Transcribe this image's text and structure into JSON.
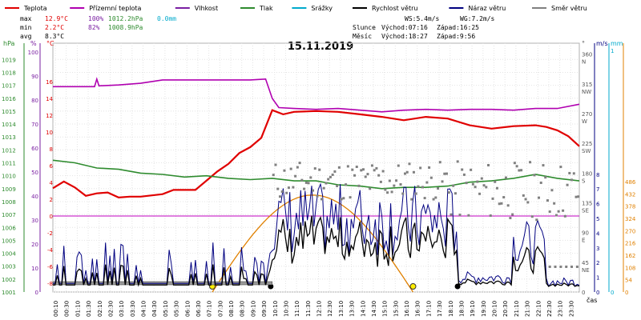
{
  "legend": [
    {
      "label": "Teplota",
      "color": "#e00000"
    },
    {
      "label": "Přízemní teplota",
      "color": "#b000b0"
    },
    {
      "label": "Vlhkost",
      "color": "#7a1fa2"
    },
    {
      "label": "Tlak",
      "color": "#2e8b2e"
    },
    {
      "label": "Srážky",
      "color": "#00aacc"
    },
    {
      "label": "Rychlost větru",
      "color": "#000000"
    },
    {
      "label": "Náraz větru",
      "color": "#000080"
    },
    {
      "label": "Směr větru",
      "color": "#808080"
    }
  ],
  "stats": {
    "max_label": "max",
    "min_label": "min",
    "avg_label": "avg",
    "max_temp": "12.9°C",
    "max_hum": "100%",
    "max_press": "1012.2hPa",
    "max_rain": "0.0mm",
    "min_temp": "2.2°C",
    "min_hum": "82%",
    "min_press": "1008.9hPa",
    "avg_temp": "8.3°C"
  },
  "wind_info": {
    "ws": "WS:5.4m/s",
    "wg": "WG:7.2m/s"
  },
  "sun": {
    "label": "Slunce",
    "rise": "Východ:07:16",
    "set": "Západ:16:25"
  },
  "moon": {
    "label": "Měsíc",
    "rise": "Východ:18:27",
    "set": "Západ:9:56"
  },
  "date": "15.11.2019",
  "axis_units": {
    "hpa": "hPa",
    "pct": "%",
    "degc": "°C",
    "deg": "°",
    "ms": "m/s",
    "mm": "mm",
    "cas": "čas"
  },
  "chart_data": {
    "type": "line",
    "title": "15.11.2019",
    "x_ticks": [
      "00:10",
      "00:30",
      "01:10",
      "01:30",
      "02:10",
      "02:30",
      "03:10",
      "03:30",
      "04:10",
      "04:30",
      "05:10",
      "05:30",
      "06:10",
      "06:30",
      "07:10",
      "07:30",
      "08:10",
      "08:30",
      "09:10",
      "09:30",
      "10:10",
      "10:30",
      "11:10",
      "11:30",
      "12:10",
      "12:30",
      "13:10",
      "13:30",
      "14:10",
      "14:30",
      "15:10",
      "15:30",
      "16:10",
      "16:30",
      "17:10",
      "17:30",
      "18:10",
      "18:30",
      "19:10",
      "19:30",
      "20:10",
      "20:30",
      "21:10",
      "21:30",
      "22:10",
      "22:30",
      "23:10",
      "23:30"
    ],
    "axes": {
      "pressure_hpa": {
        "ticks": [
          1019,
          1018,
          1017,
          1016,
          1015,
          1014,
          1013,
          1012,
          1011,
          1010,
          1009,
          1008,
          1007,
          1006,
          1005,
          1004,
          1003,
          1002,
          1001
        ],
        "range": [
          1001,
          1019.5
        ]
      },
      "humidity_pct": {
        "ticks": [
          100,
          90,
          80,
          70,
          60,
          50,
          40,
          30,
          20,
          10,
          0
        ],
        "range": [
          0,
          105
        ]
      },
      "temperature_c": {
        "ticks": [
          16,
          14,
          12,
          10,
          8,
          6,
          4,
          2,
          0,
          -2,
          -4,
          -6,
          -8
        ],
        "range": [
          -8,
          18
        ]
      },
      "wind_dir_deg": {
        "ticks": [
          {
            "v": "360",
            "d": "N"
          },
          {
            "v": "315",
            "d": "NW"
          },
          {
            "v": "270",
            "d": "W"
          },
          {
            "v": "225",
            "d": "SW"
          },
          {
            "v": "180",
            "d": "S"
          },
          {
            "v": "135",
            "d": "SE"
          },
          {
            "v": "90",
            "d": "E"
          },
          {
            "v": "45",
            "d": "NE"
          },
          {
            "v": "0",
            "d": ""
          }
        ],
        "range": [
          0,
          380
        ]
      },
      "wind_ms": {
        "ticks": [
          8,
          7,
          6,
          5,
          4,
          3,
          2,
          1,
          0
        ]
      },
      "rain_mm": {
        "ticks": [
          1,
          0
        ]
      },
      "solar": {
        "ticks": [
          486,
          432,
          378,
          324,
          270,
          216,
          162,
          108,
          54,
          0
        ]
      }
    },
    "series": [
      {
        "name": "Teplota",
        "color": "#e00000",
        "x": [
          0,
          0.5,
          1,
          1.5,
          2,
          2.5,
          3,
          3.5,
          4,
          5,
          5.5,
          6,
          6.5,
          7,
          7.5,
          8,
          8.5,
          9,
          9.5,
          10,
          10.5,
          11,
          12,
          13,
          14,
          15,
          16,
          17,
          18,
          19,
          20,
          21,
          22,
          22.5,
          23,
          23.5,
          24
        ],
        "y": [
          3.3,
          4.1,
          3.4,
          2.4,
          2.7,
          2.8,
          2.2,
          2.3,
          2.3,
          2.6,
          3.1,
          3.1,
          3.1,
          4.2,
          5.3,
          6.2,
          7.5,
          8.2,
          9.3,
          12.6,
          12.1,
          12.4,
          12.5,
          12.4,
          12.1,
          11.8,
          11.4,
          11.8,
          11.6,
          10.8,
          10.4,
          10.7,
          10.8,
          10.6,
          10.2,
          9.5,
          8.3
        ]
      },
      {
        "name": "Přízemní teplota",
        "color": "#b000b0",
        "x": [
          0,
          1,
          1.9,
          2,
          2.1,
          3,
          4,
          5,
          6,
          7,
          8,
          9,
          9.7,
          10,
          10.3,
          11,
          12,
          13,
          14,
          15,
          16,
          17,
          18,
          19,
          20,
          21,
          22,
          23,
          24
        ],
        "y": [
          15.4,
          15.4,
          15.4,
          16.3,
          15.5,
          15.6,
          15.8,
          16.2,
          16.2,
          16.2,
          16.2,
          16.2,
          16.3,
          14.0,
          12.9,
          12.8,
          12.7,
          12.8,
          12.6,
          12.4,
          12.6,
          12.7,
          12.6,
          12.7,
          12.7,
          12.6,
          12.8,
          12.8,
          13.3
        ]
      },
      {
        "name": "Tlak",
        "color": "#2e8b2e",
        "x": [
          0,
          1,
          2,
          3,
          4,
          5,
          6,
          7,
          8,
          9,
          10,
          11,
          12,
          13,
          14,
          15,
          16,
          17,
          18,
          19,
          20,
          21,
          22,
          23,
          24
        ],
        "y": [
          1011.2,
          1011.0,
          1010.6,
          1010.5,
          1010.2,
          1010.1,
          1009.9,
          1010.0,
          1009.8,
          1009.7,
          1009.8,
          1009.6,
          1009.6,
          1009.3,
          1009.2,
          1009.0,
          1009.1,
          1009.1,
          1009.2,
          1009.5,
          1009.6,
          1009.8,
          1010.1,
          1009.8,
          1009.6
        ]
      }
    ],
    "reference_line": {
      "value": 0,
      "axis": "temperature_c",
      "color": "#c000c0"
    },
    "sun_arc": {
      "rise": 7.27,
      "set": 16.42,
      "peak_temp_axis": 2.5,
      "color": "#e08000"
    }
  }
}
